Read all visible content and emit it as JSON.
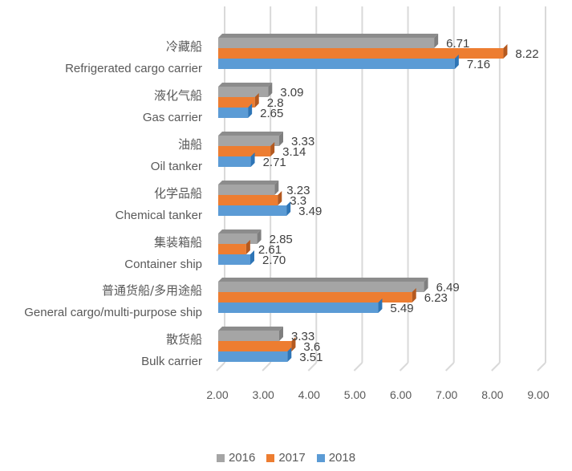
{
  "chart_data": {
    "type": "bar",
    "orientation": "horizontal",
    "title": "",
    "xlabel": "",
    "ylabel": "",
    "xlim": [
      2,
      9
    ],
    "grid": true,
    "legend_position": "bottom",
    "categories": [
      {
        "zh": "冷藏船",
        "en": "Refrigerated cargo carrier"
      },
      {
        "zh": "液化气船",
        "en": "Gas carrier"
      },
      {
        "zh": "油船",
        "en": "Oil tanker"
      },
      {
        "zh": "化学品船",
        "en": "Chemical tanker"
      },
      {
        "zh": "集装箱船",
        "en": "Container ship"
      },
      {
        "zh": "普通货船/多用途船",
        "en": "General cargo/multi-purpose ship"
      },
      {
        "zh": "散货船",
        "en": "Bulk carrier"
      }
    ],
    "x_ticks": [
      "2.00",
      "3.00",
      "4.00",
      "5.00",
      "6.00",
      "7.00",
      "8.00",
      "9.00"
    ],
    "series": [
      {
        "name": "2016",
        "color": "#a5a5a5",
        "values": [
          6.71,
          3.09,
          3.33,
          3.23,
          2.85,
          6.49,
          3.33
        ],
        "labels": [
          "6.71",
          "3.09",
          "3.33",
          "3.23",
          "2.85",
          "6.49",
          "3.33"
        ]
      },
      {
        "name": "2017",
        "color": "#ed7d31",
        "values": [
          8.22,
          2.8,
          3.14,
          3.3,
          2.61,
          6.23,
          3.6
        ],
        "labels": [
          "8.22",
          "2.8",
          "3.14",
          "3.3",
          "2.61",
          "6.23",
          "3.6"
        ]
      },
      {
        "name": "2018",
        "color": "#5b9bd5",
        "values": [
          7.16,
          2.65,
          2.71,
          3.49,
          2.7,
          5.49,
          3.51
        ],
        "labels": [
          "7.16",
          "2.65",
          "2.71",
          "3.49",
          "2.70",
          "5.49",
          "3.51"
        ]
      }
    ]
  }
}
